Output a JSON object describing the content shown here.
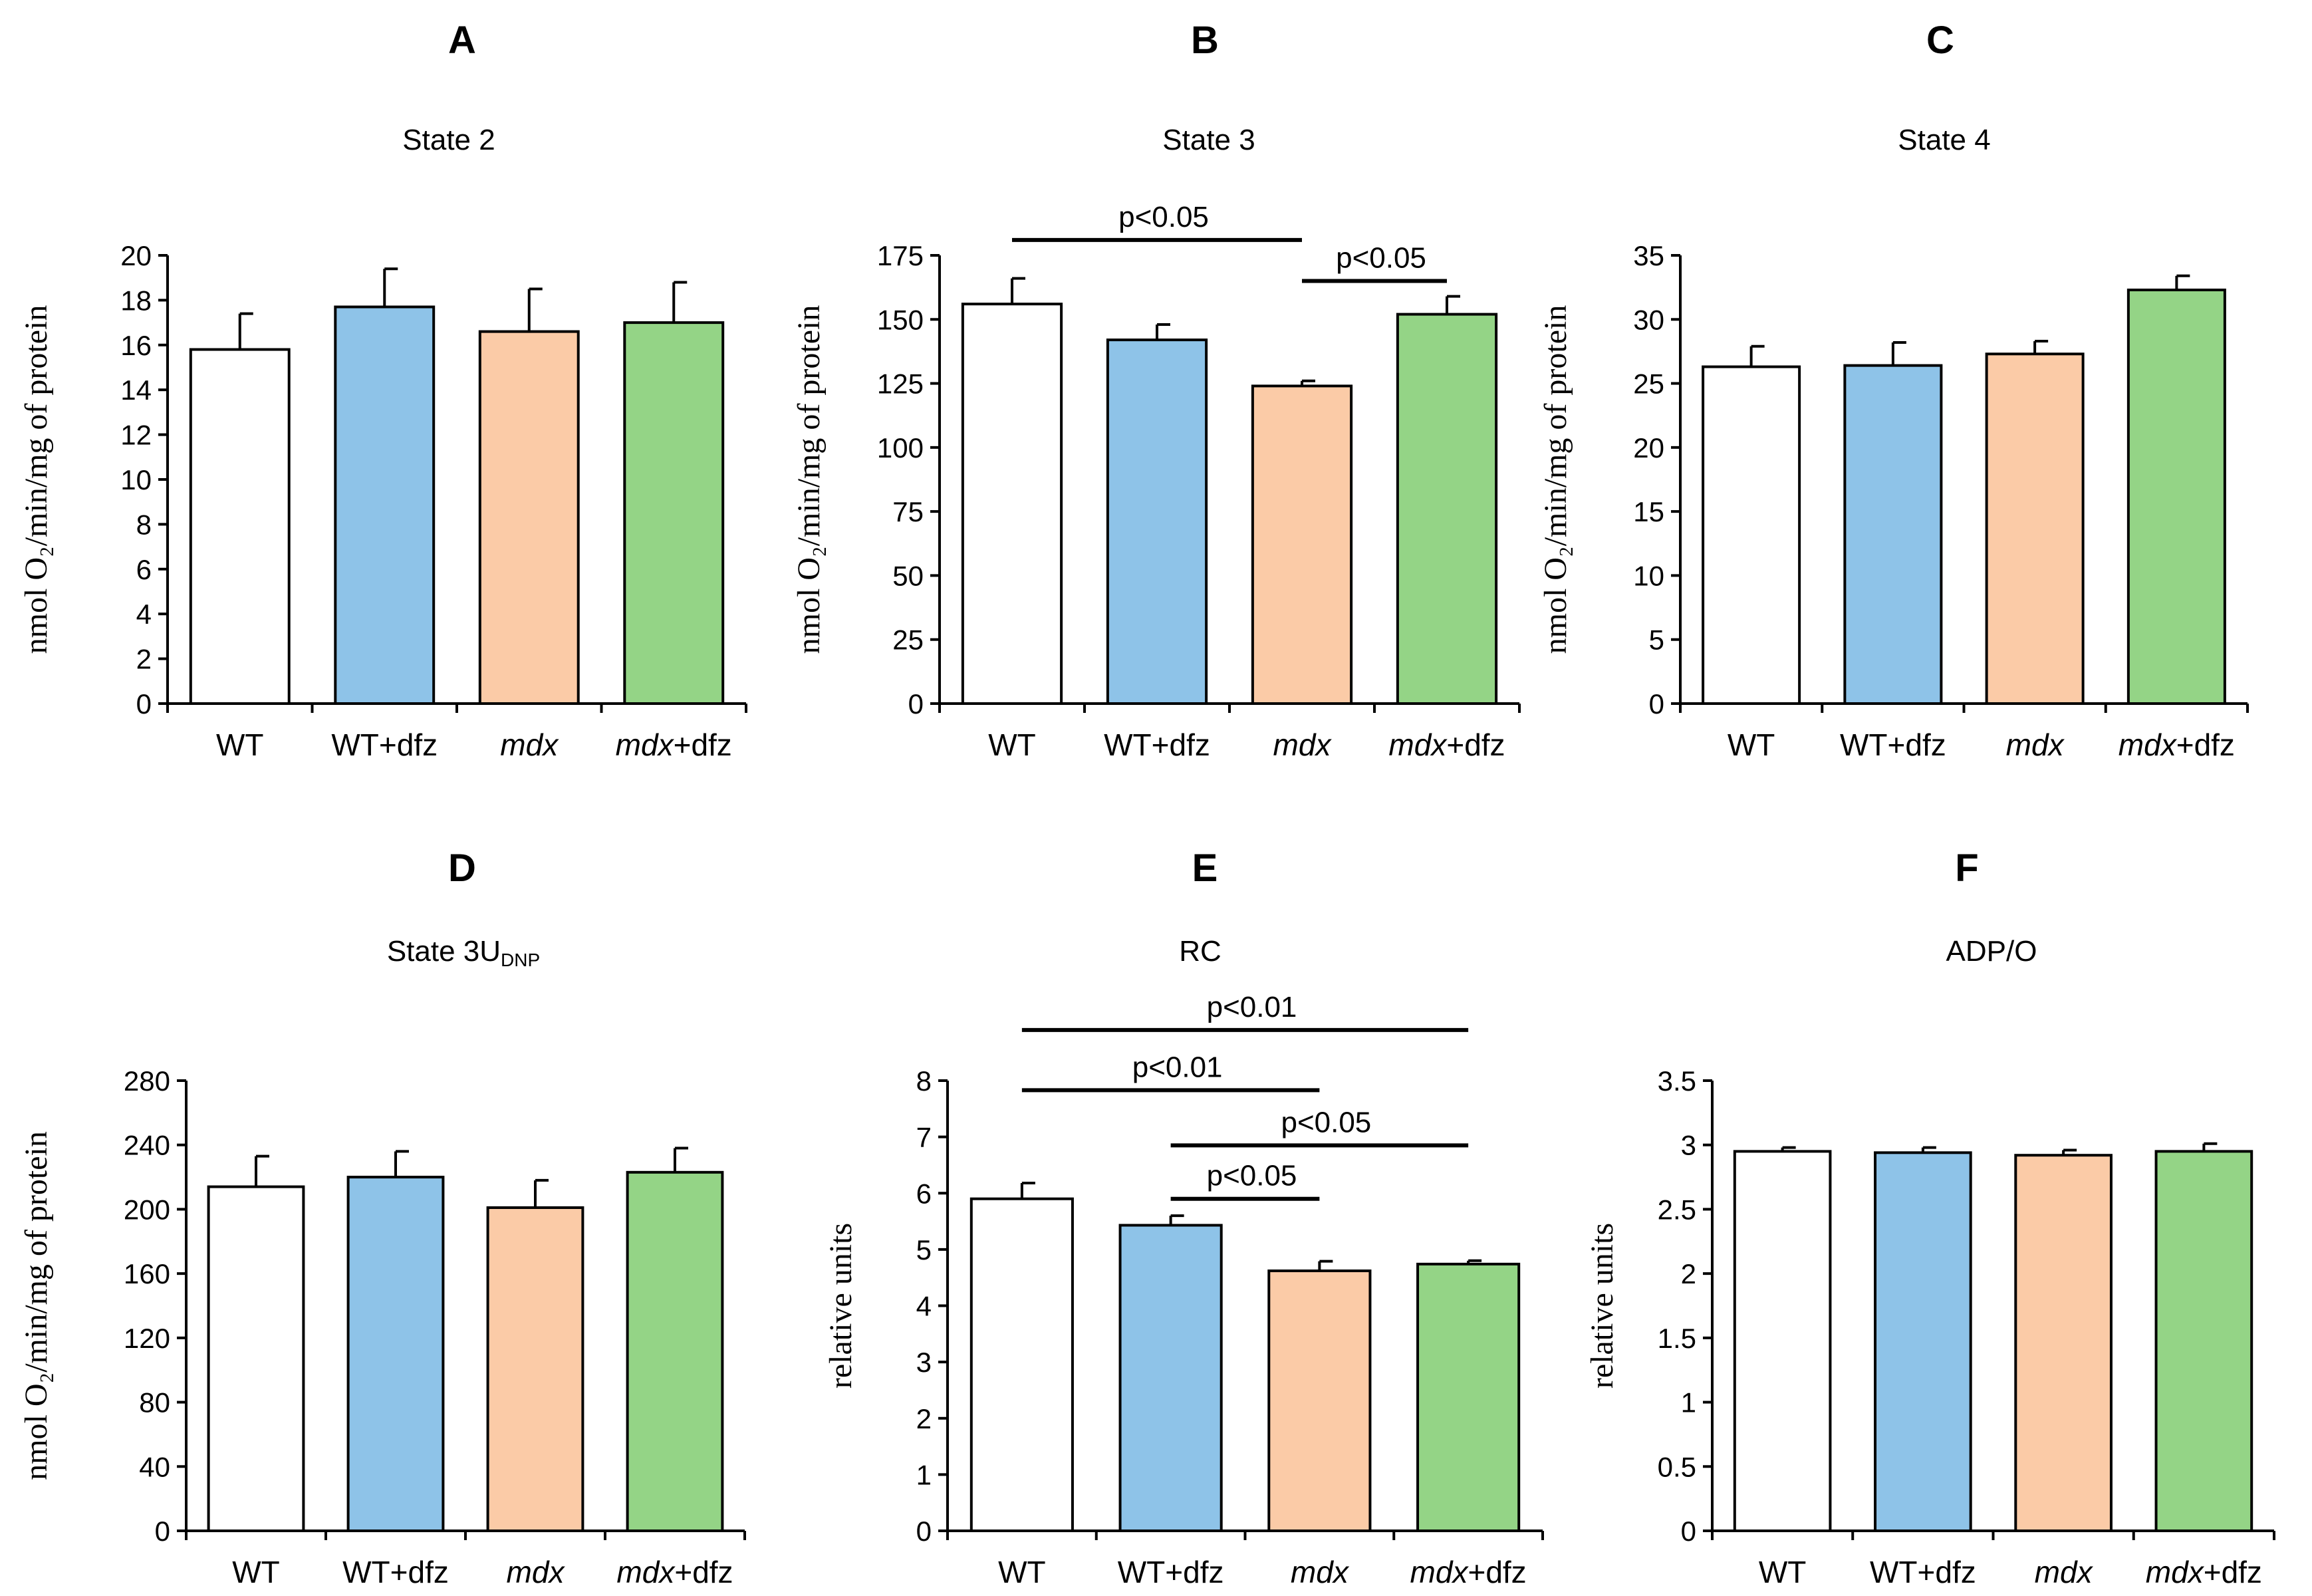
{
  "chart_data": [
    {
      "id": "A",
      "type": "bar",
      "panel_letter": "A",
      "title": "State 2",
      "title_sub": "",
      "ylabel": "nmol O₂/min/mg of protein",
      "ylim": [
        0,
        20
      ],
      "yticks": [
        0,
        2,
        4,
        6,
        8,
        10,
        12,
        14,
        16,
        18,
        20
      ],
      "ytick_labels": [
        "0",
        "2",
        "4",
        "6",
        "8",
        "10",
        "12",
        "14",
        "16",
        "18",
        "20"
      ],
      "categories": [
        {
          "label": "WT",
          "italic_part": "",
          "rest": "WT"
        },
        {
          "label": "WT+dfz",
          "italic_part": "",
          "rest": "WT+dfz"
        },
        {
          "label": "mdx",
          "italic_part": "mdx",
          "rest": ""
        },
        {
          "label": "mdx+dfz",
          "italic_part": "mdx",
          "rest": "+dfz"
        }
      ],
      "values": [
        15.8,
        17.7,
        16.6,
        17.0
      ],
      "errors": [
        1.6,
        1.7,
        1.9,
        1.8
      ],
      "significance": []
    },
    {
      "id": "B",
      "type": "bar",
      "panel_letter": "B",
      "title": "State 3",
      "title_sub": "",
      "ylabel": "nmol O₂/min/mg of protein",
      "ylim": [
        0,
        175
      ],
      "yticks": [
        0,
        25,
        50,
        75,
        100,
        125,
        150,
        175
      ],
      "ytick_labels": [
        "0",
        "25",
        "50",
        "75",
        "100",
        "125",
        "150",
        "175"
      ],
      "categories": [
        {
          "label": "WT",
          "italic_part": "",
          "rest": "WT"
        },
        {
          "label": "WT+dfz",
          "italic_part": "",
          "rest": "WT+dfz"
        },
        {
          "label": "mdx",
          "italic_part": "mdx",
          "rest": ""
        },
        {
          "label": "mdx+dfz",
          "italic_part": "mdx",
          "rest": "+dfz"
        }
      ],
      "values": [
        156,
        142,
        124,
        152
      ],
      "errors": [
        10,
        6,
        2,
        7
      ],
      "significance": [
        {
          "from": 0,
          "to": 2,
          "label": "p<0.05",
          "y": 181
        },
        {
          "from": 2,
          "to": 3,
          "label": "p<0.05",
          "y": 165
        }
      ]
    },
    {
      "id": "C",
      "type": "bar",
      "panel_letter": "C",
      "title": "State 4",
      "title_sub": "",
      "ylabel": "nmol O₂/min/mg of protein",
      "ylim": [
        0,
        35
      ],
      "yticks": [
        0,
        5,
        10,
        15,
        20,
        25,
        30,
        35
      ],
      "ytick_labels": [
        "0",
        "5",
        "10",
        "15",
        "20",
        "25",
        "30",
        "35"
      ],
      "categories": [
        {
          "label": "WT",
          "italic_part": "",
          "rest": "WT"
        },
        {
          "label": "WT+dfz",
          "italic_part": "",
          "rest": "WT+dfz"
        },
        {
          "label": "mdx",
          "italic_part": "mdx",
          "rest": ""
        },
        {
          "label": "mdx+dfz",
          "italic_part": "mdx",
          "rest": "+dfz"
        }
      ],
      "values": [
        26.3,
        26.4,
        27.3,
        32.3
      ],
      "errors": [
        1.6,
        1.8,
        1.0,
        1.1
      ],
      "significance": []
    },
    {
      "id": "D",
      "type": "bar",
      "panel_letter": "D",
      "title": "State 3U",
      "title_sub": "DNP",
      "ylabel": "nmol O₂/min/mg of protein",
      "ylim": [
        0,
        280
      ],
      "yticks": [
        0,
        40,
        80,
        120,
        160,
        200,
        240,
        280
      ],
      "ytick_labels": [
        "0",
        "40",
        "80",
        "120",
        "160",
        "200",
        "240",
        "280"
      ],
      "categories": [
        {
          "label": "WT",
          "italic_part": "",
          "rest": "WT"
        },
        {
          "label": "WT+dfz",
          "italic_part": "",
          "rest": "WT+dfz"
        },
        {
          "label": "mdx",
          "italic_part": "mdx",
          "rest": ""
        },
        {
          "label": "mdx+dfz",
          "italic_part": "mdx",
          "rest": "+dfz"
        }
      ],
      "values": [
        214,
        220,
        201,
        223
      ],
      "errors": [
        19,
        16,
        17,
        15
      ],
      "significance": []
    },
    {
      "id": "E",
      "type": "bar",
      "panel_letter": "E",
      "title": "RC",
      "title_sub": "",
      "ylabel": "relative units",
      "ylim": [
        0,
        8
      ],
      "yticks": [
        0,
        1,
        2,
        3,
        4,
        5,
        6,
        7,
        8
      ],
      "ytick_labels": [
        "0",
        "1",
        "2",
        "3",
        "4",
        "5",
        "6",
        "7",
        "8"
      ],
      "categories": [
        {
          "label": "WT",
          "italic_part": "",
          "rest": "WT"
        },
        {
          "label": "WT+dfz",
          "italic_part": "",
          "rest": "WT+dfz"
        },
        {
          "label": "mdx",
          "italic_part": "mdx",
          "rest": ""
        },
        {
          "label": "mdx+dfz",
          "italic_part": "mdx",
          "rest": "+dfz"
        }
      ],
      "values": [
        5.9,
        5.43,
        4.62,
        4.74
      ],
      "errors": [
        0.28,
        0.17,
        0.17,
        0.06
      ],
      "significance": [
        {
          "from": 0,
          "to": 3,
          "label": "p<0.01",
          "y": 8.9
        },
        {
          "from": 0,
          "to": 2,
          "label": "p<0.01",
          "y": 7.83
        },
        {
          "from": 1,
          "to": 3,
          "label": "p<0.05",
          "y": 6.85
        },
        {
          "from": 1,
          "to": 2,
          "label": "p<0.05",
          "y": 5.9
        }
      ]
    },
    {
      "id": "F",
      "type": "bar",
      "panel_letter": "F",
      "title": "ADP/O",
      "title_sub": "",
      "ylabel": "relative units",
      "ylim": [
        0,
        3.5
      ],
      "yticks": [
        0,
        0.5,
        1,
        1.5,
        2,
        2.5,
        3,
        3.5
      ],
      "ytick_labels": [
        "0",
        "0.5",
        "1",
        "1.5",
        "2",
        "2.5",
        "3",
        "3.5"
      ],
      "categories": [
        {
          "label": "WT",
          "italic_part": "",
          "rest": "WT"
        },
        {
          "label": "WT+dfz",
          "italic_part": "",
          "rest": "WT+dfz"
        },
        {
          "label": "mdx",
          "italic_part": "mdx",
          "rest": ""
        },
        {
          "label": "mdx+dfz",
          "italic_part": "mdx",
          "rest": "+dfz"
        }
      ],
      "values": [
        2.95,
        2.94,
        2.92,
        2.95
      ],
      "errors": [
        0.03,
        0.04,
        0.04,
        0.06
      ],
      "significance": []
    }
  ],
  "colors": {
    "bars": [
      "#ffffff",
      "#8ec3e8",
      "#fbcba7",
      "#94d486"
    ],
    "outline": "#000000"
  }
}
